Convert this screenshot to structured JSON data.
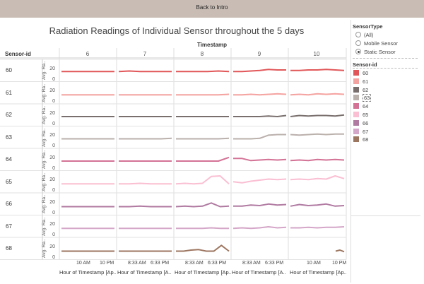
{
  "header": {
    "back_label": "Back to Intro"
  },
  "chart_title": "Radiation Readings of Individual Sensor throughout the 5 days",
  "timestamp_label": "Timestamp",
  "sensor_id_header": "Sensor-id",
  "filter": {
    "title": "SensorType",
    "options": [
      {
        "label": "(All)",
        "selected": false
      },
      {
        "label": "Mobile Sensor",
        "selected": false
      },
      {
        "label": "Static Sensor",
        "selected": true
      }
    ]
  },
  "legend": {
    "title": "Sensor-id",
    "items": [
      {
        "label": "60",
        "color": "#e15759"
      },
      {
        "label": "61",
        "color": "#f4a3a0"
      },
      {
        "label": "62",
        "color": "#79706e"
      },
      {
        "label": "63",
        "color": "#bab0ac",
        "selected": true
      },
      {
        "label": "64",
        "color": "#d37295"
      },
      {
        "label": "65",
        "color": "#fabfd2"
      },
      {
        "label": "66",
        "color": "#b07aa1"
      },
      {
        "label": "67",
        "color": "#d4a6c8"
      },
      {
        "label": "68",
        "color": "#9d7660"
      }
    ]
  },
  "chart_data": {
    "type": "line",
    "title": "Radiation Readings of Individual Sensor throughout the 5 days",
    "column_label": "Timestamp",
    "days": [
      "6",
      "7",
      "8",
      "9",
      "10"
    ],
    "x_axis_titles": [
      "Hour of Timestamp [Ap..",
      "Hour of Timestamp [A..",
      "Hour of Timestamp [Ap..",
      "Hour of Timestamp [A..",
      "Hour of Timestamp [Ap.."
    ],
    "x_ticks": [
      [
        "10 AM",
        "10 PM"
      ],
      [
        "8:33 AM",
        "6:33 PM"
      ],
      [
        "8:33 AM",
        "6:33 PM"
      ],
      [
        "8:33 AM",
        "6:33 PM"
      ],
      [
        "10 AM",
        "10 PM"
      ]
    ],
    "y_label": "Avg. Ra..",
    "y_ticks": [
      "20",
      "0"
    ],
    "y_range": [
      0,
      30
    ],
    "series": [
      {
        "sensor": "60",
        "color": "#e15759",
        "days": [
          [
            15,
            15,
            15,
            15,
            15,
            15
          ],
          [
            15,
            16,
            15,
            15,
            15,
            15
          ],
          [
            15,
            15,
            15,
            15,
            16,
            15
          ],
          [
            15,
            15,
            16,
            17,
            19,
            18,
            18
          ],
          [
            17,
            17,
            18,
            18,
            19,
            18,
            17
          ]
        ]
      },
      {
        "sensor": "61",
        "color": "#f4a3a0",
        "days": [
          [
            13,
            13,
            13,
            13,
            13,
            13
          ],
          [
            13,
            13,
            13,
            13,
            13,
            13
          ],
          [
            13,
            13,
            13,
            13,
            13,
            14
          ],
          [
            13,
            13,
            14,
            13,
            14,
            15,
            14
          ],
          [
            13,
            14,
            13,
            15,
            14,
            15,
            14
          ]
        ]
      },
      {
        "sensor": "62",
        "color": "#79706e",
        "days": [
          [
            14,
            14,
            14,
            14,
            14,
            14
          ],
          [
            14,
            14,
            14,
            14,
            14,
            14
          ],
          [
            14,
            14,
            14,
            14,
            14,
            14
          ],
          [
            14,
            14,
            14,
            14,
            15,
            14,
            16
          ],
          [
            14,
            16,
            15,
            16,
            16,
            15,
            17
          ]
        ]
      },
      {
        "sensor": "63",
        "color": "#bab0ac",
        "days": [
          [
            14,
            14,
            14,
            14,
            14,
            14
          ],
          [
            14,
            14,
            14,
            14,
            14,
            15
          ],
          [
            14,
            14,
            14,
            14,
            14,
            15
          ],
          [
            14,
            14,
            14,
            15,
            21,
            22,
            22
          ],
          [
            22,
            21,
            22,
            23,
            22,
            23,
            23
          ]
        ]
      },
      {
        "sensor": "64",
        "color": "#d37295",
        "days": [
          [
            14,
            14,
            14,
            14,
            14,
            14
          ],
          [
            14,
            14,
            14,
            14,
            14,
            14
          ],
          [
            14,
            14,
            14,
            14,
            14,
            21
          ],
          [
            19,
            19,
            15,
            16,
            17,
            16,
            17
          ],
          [
            15,
            16,
            15,
            17,
            16,
            17,
            16
          ]
        ]
      },
      {
        "sensor": "65",
        "color": "#fabfd2",
        "days": [
          [
            13,
            13,
            13,
            13,
            13,
            13
          ],
          [
            13,
            13,
            14,
            13,
            13,
            13
          ],
          [
            13,
            14,
            13,
            14,
            27,
            28,
            13
          ],
          [
            17,
            15,
            18,
            20,
            22,
            21,
            22
          ],
          [
            21,
            22,
            21,
            23,
            22,
            28,
            23
          ]
        ]
      },
      {
        "sensor": "66",
        "color": "#b07aa1",
        "days": [
          [
            12,
            12,
            12,
            12,
            12,
            12
          ],
          [
            12,
            12,
            13,
            12,
            12,
            12
          ],
          [
            12,
            13,
            12,
            13,
            19,
            12,
            13
          ],
          [
            13,
            13,
            15,
            14,
            17,
            15,
            16
          ],
          [
            13,
            16,
            14,
            15,
            17,
            13,
            14
          ]
        ]
      },
      {
        "sensor": "67",
        "color": "#d4a6c8",
        "days": [
          [
            13,
            13,
            13,
            13,
            13,
            13
          ],
          [
            13,
            13,
            13,
            13,
            13,
            13
          ],
          [
            13,
            13,
            13,
            13,
            14,
            13,
            13
          ],
          [
            13,
            14,
            13,
            14,
            16,
            14,
            15
          ],
          [
            14,
            14,
            15,
            14,
            15,
            15,
            16
          ]
        ]
      },
      {
        "sensor": "68",
        "color": "#9d7660",
        "days": [
          [
            12,
            12,
            12,
            12,
            12,
            12
          ],
          [
            12,
            12,
            12,
            12,
            12,
            12
          ],
          [
            12,
            12,
            14,
            15,
            12,
            12,
            23,
            12
          ],
          [],
          [
            12,
            14,
            11
          ]
        ]
      }
    ],
    "grid": true,
    "legend_position": "right"
  }
}
